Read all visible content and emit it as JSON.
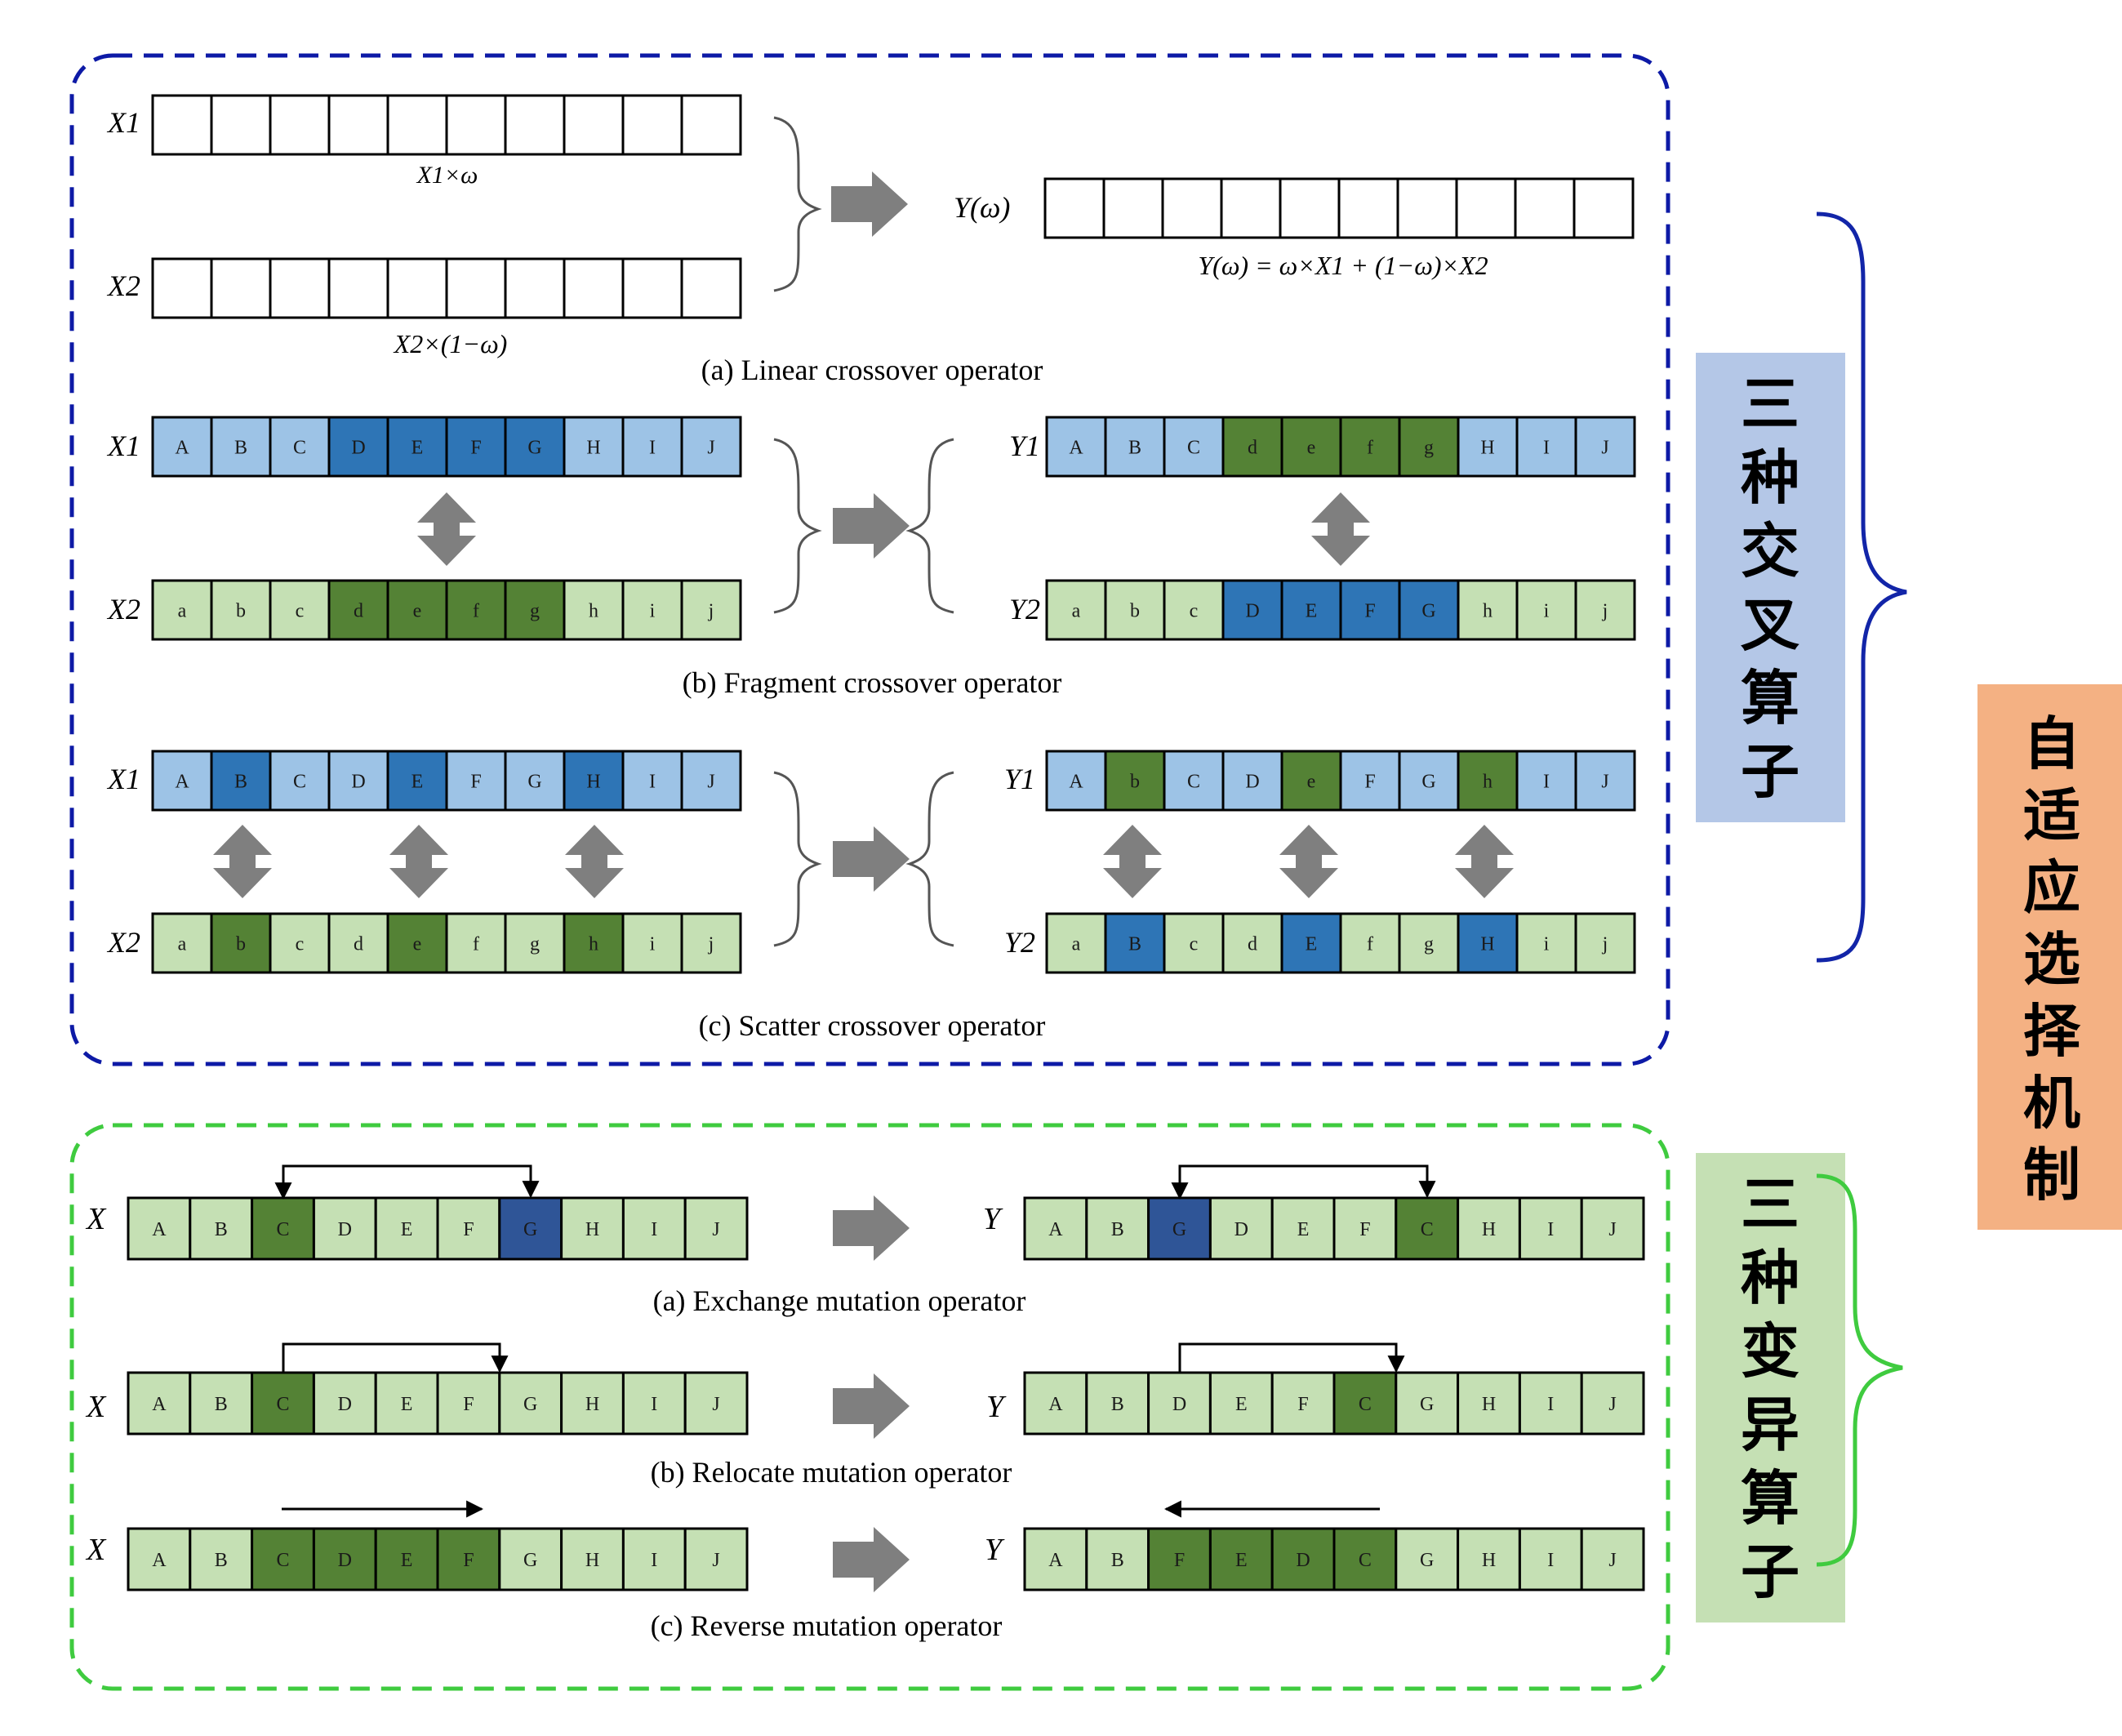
{
  "colors": {
    "white": "#ffffff",
    "light_blue": "#9dc3e6",
    "dark_blue": "#2e75b6",
    "navy": "#2f5597",
    "light_green": "#c5e0b4",
    "dark_green": "#548235",
    "crossover_border": "#0d1aa6",
    "mutation_border": "#3fcb3f",
    "crossover_label_bg": "#b4c7e7",
    "mutation_label_bg": "#c5e0b4",
    "mechanism_label_bg": "#f4b183",
    "arrow_gray": "#7f7f7f"
  },
  "crossover": {
    "label": "三种交叉算子",
    "linear": {
      "x1": "X1",
      "x2": "X2",
      "x1_weight": "X1×ω",
      "x2_weight": "X2×(1−ω)",
      "y": "Y(ω)",
      "formula": "Y(ω) = ω×X1 + (1−ω)×X2",
      "caption": "(a) Linear crossover operator",
      "rows": [
        [
          "",
          "",
          "",
          "",
          "",
          "",
          "",
          "",
          "",
          ""
        ],
        [
          "",
          "",
          "",
          "",
          "",
          "",
          "",
          "",
          "",
          ""
        ],
        [
          "",
          "",
          "",
          "",
          "",
          "",
          "",
          "",
          "",
          ""
        ]
      ]
    },
    "fragment": {
      "caption": "(b) Fragment crossover operator",
      "parents": [
        {
          "name": "X1",
          "cells": [
            "A",
            "B",
            "C",
            "D",
            "E",
            "F",
            "G",
            "H",
            "I",
            "J"
          ],
          "colors": [
            "lb",
            "lb",
            "lb",
            "db",
            "db",
            "db",
            "db",
            "lb",
            "lb",
            "lb"
          ]
        },
        {
          "name": "X2",
          "cells": [
            "a",
            "b",
            "c",
            "d",
            "e",
            "f",
            "g",
            "h",
            "i",
            "j"
          ],
          "colors": [
            "lg",
            "lg",
            "lg",
            "dg",
            "dg",
            "dg",
            "dg",
            "lg",
            "lg",
            "lg"
          ]
        }
      ],
      "children": [
        {
          "name": "Y1",
          "cells": [
            "A",
            "B",
            "C",
            "d",
            "e",
            "f",
            "g",
            "H",
            "I",
            "J"
          ],
          "colors": [
            "lb",
            "lb",
            "lb",
            "dg",
            "dg",
            "dg",
            "dg",
            "lb",
            "lb",
            "lb"
          ]
        },
        {
          "name": "Y2",
          "cells": [
            "a",
            "b",
            "c",
            "D",
            "E",
            "F",
            "G",
            "h",
            "i",
            "j"
          ],
          "colors": [
            "lg",
            "lg",
            "lg",
            "db",
            "db",
            "db",
            "db",
            "lg",
            "lg",
            "lg"
          ]
        }
      ]
    },
    "scatter": {
      "caption": "(c) Scatter crossover operator",
      "parents": [
        {
          "name": "X1",
          "cells": [
            "A",
            "B",
            "C",
            "D",
            "E",
            "F",
            "G",
            "H",
            "I",
            "J"
          ],
          "colors": [
            "lb",
            "db",
            "lb",
            "lb",
            "db",
            "lb",
            "lb",
            "db",
            "lb",
            "lb"
          ]
        },
        {
          "name": "X2",
          "cells": [
            "a",
            "b",
            "c",
            "d",
            "e",
            "f",
            "g",
            "h",
            "i",
            "j"
          ],
          "colors": [
            "lg",
            "dg",
            "lg",
            "lg",
            "dg",
            "lg",
            "lg",
            "dg",
            "lg",
            "lg"
          ]
        }
      ],
      "children": [
        {
          "name": "Y1",
          "cells": [
            "A",
            "b",
            "C",
            "D",
            "e",
            "F",
            "G",
            "h",
            "I",
            "J"
          ],
          "colors": [
            "lb",
            "dg",
            "lb",
            "lb",
            "dg",
            "lb",
            "lb",
            "dg",
            "lb",
            "lb"
          ]
        },
        {
          "name": "Y2",
          "cells": [
            "a",
            "B",
            "c",
            "d",
            "E",
            "f",
            "g",
            "H",
            "i",
            "j"
          ],
          "colors": [
            "lg",
            "db",
            "lg",
            "lg",
            "db",
            "lg",
            "lg",
            "db",
            "lg",
            "lg"
          ]
        }
      ]
    }
  },
  "mutation": {
    "label": "三种变异算子",
    "exchange": {
      "caption": "(a) Exchange mutation operator",
      "input": {
        "name": "X",
        "cells": [
          "A",
          "B",
          "C",
          "D",
          "E",
          "F",
          "G",
          "H",
          "I",
          "J"
        ],
        "colors": [
          "lg",
          "lg",
          "dg",
          "lg",
          "lg",
          "lg",
          "nv",
          "lg",
          "lg",
          "lg"
        ]
      },
      "output": {
        "name": "Y",
        "cells": [
          "A",
          "B",
          "G",
          "D",
          "E",
          "F",
          "C",
          "H",
          "I",
          "J"
        ],
        "colors": [
          "lg",
          "lg",
          "nv",
          "lg",
          "lg",
          "lg",
          "dg",
          "lg",
          "lg",
          "lg"
        ]
      }
    },
    "relocate": {
      "caption": "(b) Relocate mutation operator",
      "input": {
        "name": "X",
        "cells": [
          "A",
          "B",
          "C",
          "D",
          "E",
          "F",
          "G",
          "H",
          "I",
          "J"
        ],
        "colors": [
          "lg",
          "lg",
          "dg",
          "lg",
          "lg",
          "lg",
          "lg",
          "lg",
          "lg",
          "lg"
        ]
      },
      "output": {
        "name": "Y",
        "cells": [
          "A",
          "B",
          "D",
          "E",
          "F",
          "C",
          "G",
          "H",
          "I",
          "J"
        ],
        "colors": [
          "lg",
          "lg",
          "lg",
          "lg",
          "lg",
          "dg",
          "lg",
          "lg",
          "lg",
          "lg"
        ]
      }
    },
    "reverse": {
      "caption": "(c) Reverse mutation operator",
      "input": {
        "name": "X",
        "cells": [
          "A",
          "B",
          "C",
          "D",
          "E",
          "F",
          "G",
          "H",
          "I",
          "J"
        ],
        "colors": [
          "lg",
          "lg",
          "dg",
          "dg",
          "dg",
          "dg",
          "lg",
          "lg",
          "lg",
          "lg"
        ]
      },
      "output": {
        "name": "Y",
        "cells": [
          "A",
          "B",
          "F",
          "E",
          "D",
          "C",
          "G",
          "H",
          "I",
          "J"
        ],
        "colors": [
          "lg",
          "lg",
          "dg",
          "dg",
          "dg",
          "dg",
          "lg",
          "lg",
          "lg",
          "lg"
        ]
      }
    }
  },
  "mechanism": {
    "label": "自适应选择机制"
  }
}
